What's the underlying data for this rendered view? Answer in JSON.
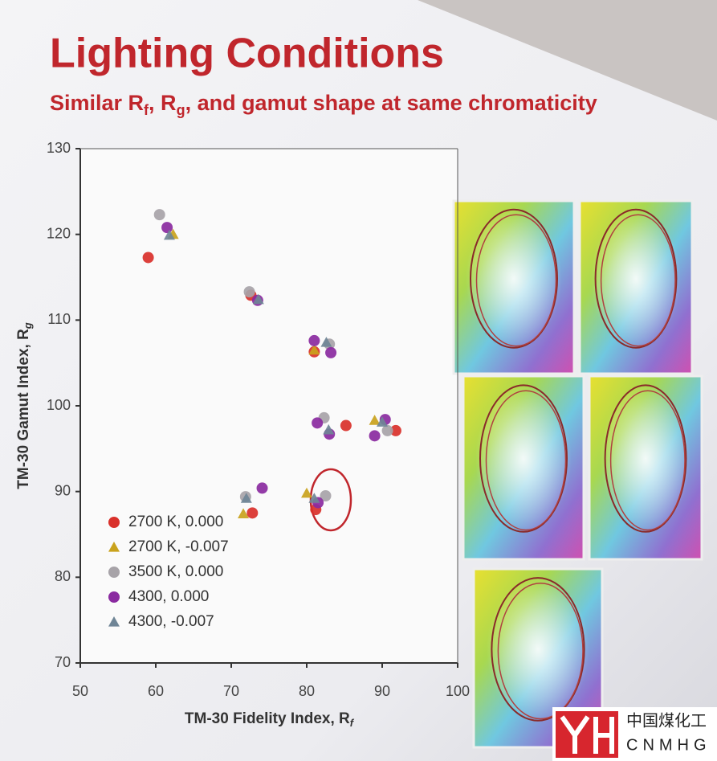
{
  "chart_data": {
    "type": "scatter",
    "title": "Lighting Conditions",
    "subtitle": [
      "Similar R",
      "f",
      ", R",
      "g",
      ", and gamut shape at same chromaticity"
    ],
    "x_label": [
      "TM-30 Fidelity Index, R",
      "f"
    ],
    "y_label": [
      "TM-30 Gamut Index, R",
      "g"
    ],
    "xlim": [
      50,
      100
    ],
    "xticks": [
      50,
      60,
      70,
      80,
      90,
      100
    ],
    "ylim": [
      70,
      130
    ],
    "yticks": [
      70,
      80,
      90,
      100,
      110,
      120,
      130
    ],
    "legend": "lower left",
    "series": [
      {
        "name": "2700 K, 0.000",
        "color": "#d9302a",
        "marker": "circle",
        "x": [
          59,
          72.6,
          81,
          85.2,
          91.8,
          72.8,
          81.2
        ],
        "y": [
          117.3,
          112.9,
          106.3,
          97.7,
          97.1,
          87.5,
          87.9
        ]
      },
      {
        "name": "2700 K, -0.007",
        "color": "#c9a21c",
        "marker": "triangle",
        "x": [
          62.3,
          81,
          89,
          71.6,
          80
        ],
        "y": [
          120,
          106.5,
          98.3,
          87.4,
          89.8
        ]
      },
      {
        "name": "3500 K, 0.000",
        "color": "#a7a3a8",
        "marker": "circle",
        "x": [
          60.5,
          72.4,
          82.3,
          90.7,
          71.9,
          82.5,
          83
        ],
        "y": [
          122.3,
          113.3,
          98.6,
          97.1,
          89.4,
          89.5,
          107.2
        ]
      },
      {
        "name": "4300, 0.000",
        "color": "#8a2aa0",
        "marker": "circle",
        "x": [
          61.5,
          73.5,
          81,
          83.2,
          81.4,
          83,
          89,
          90.4,
          74.1,
          81.5
        ],
        "y": [
          120.8,
          112.3,
          107.6,
          106.2,
          98,
          96.7,
          96.5,
          98.4,
          90.4,
          88.7
        ]
      },
      {
        "name": "4300, -0.007",
        "color": "#6f8596",
        "marker": "triangle",
        "x": [
          61.8,
          73.6,
          82.6,
          82.9,
          90,
          72,
          81
        ],
        "y": [
          119.9,
          112.4,
          107.4,
          97.2,
          98.1,
          89.2,
          89.2
        ]
      }
    ]
  },
  "watermark": {
    "chinese": "中国煤化工",
    "latin": "CNMHG"
  }
}
